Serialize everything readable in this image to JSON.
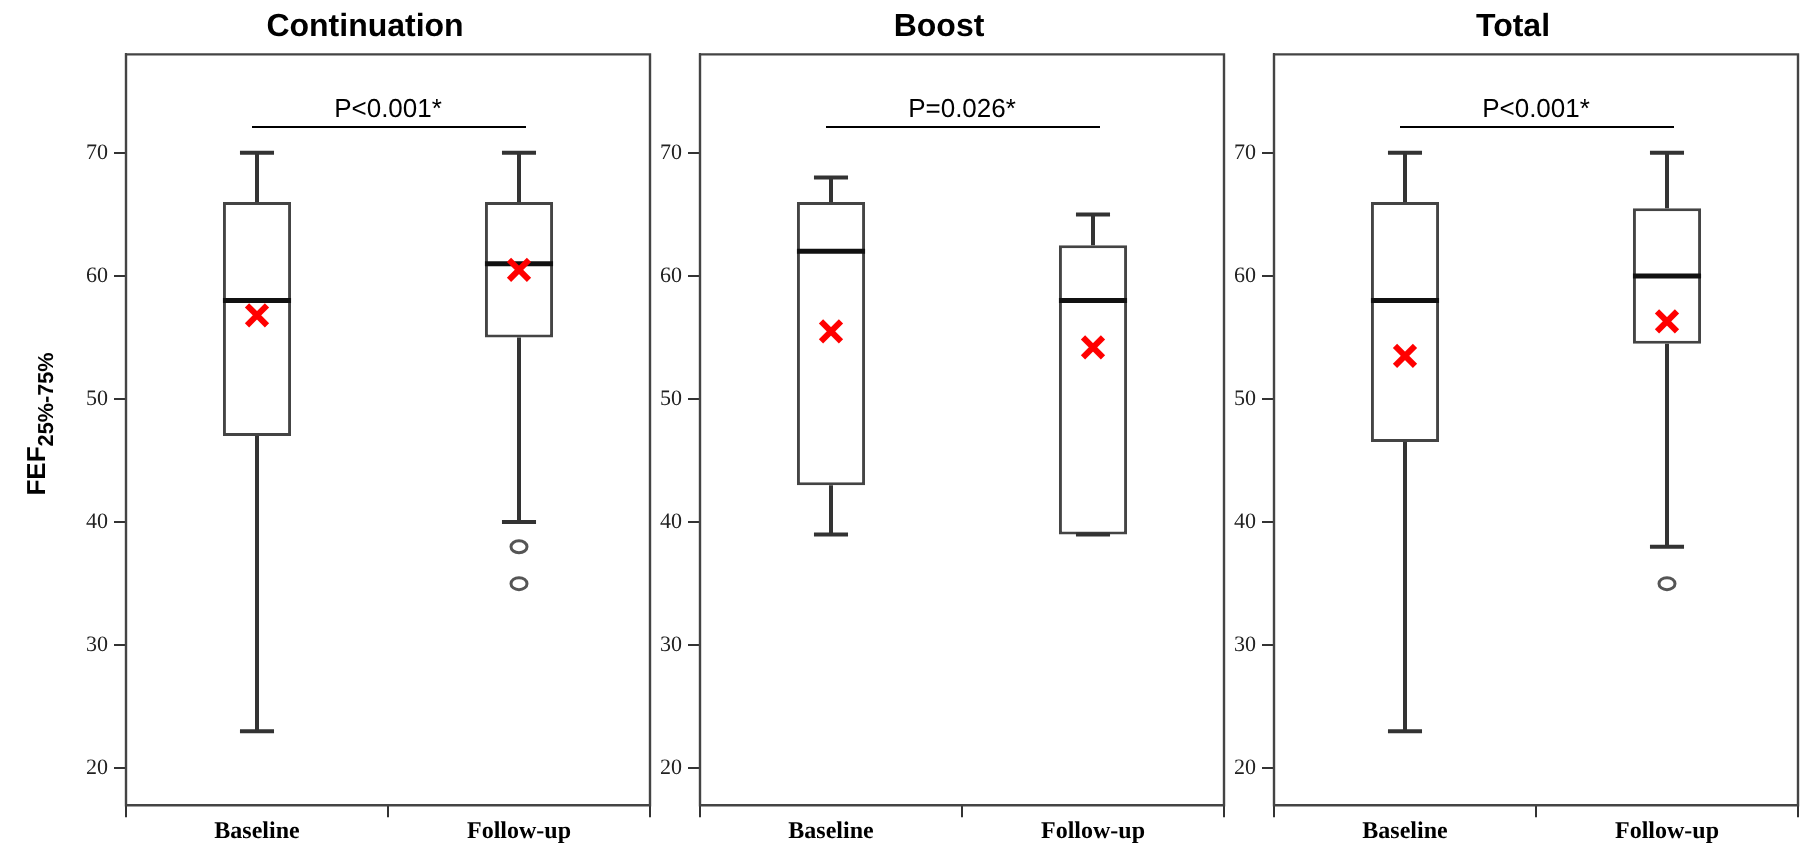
{
  "chart_data": [
    {
      "type": "box",
      "title": "Continuation",
      "ylabel": "FEF$_{25%-75%}$",
      "categories": [
        "Baseline",
        "Follow-up"
      ],
      "ylim": [
        17,
        78
      ],
      "yticks": [
        20,
        30,
        40,
        50,
        60,
        70
      ],
      "grid": false,
      "legend": false,
      "annotations": [
        "P<0.001*"
      ],
      "boxes": [
        {
          "low": 23,
          "q1": 47,
          "median": 58,
          "q3": 66,
          "high": 70,
          "mean": 56.8
        },
        {
          "low": 40,
          "q1": 55,
          "median": 61,
          "q3": 66,
          "high": 70,
          "mean": 60.5,
          "outliers": [
            38,
            35
          ]
        }
      ]
    },
    {
      "type": "box",
      "title": "Boost",
      "categories": [
        "Baseline",
        "Follow-up"
      ],
      "ylim": [
        17,
        78
      ],
      "yticks": [
        20,
        30,
        40,
        50,
        60,
        70
      ],
      "grid": false,
      "legend": false,
      "annotations": [
        "P=0.026*"
      ],
      "boxes": [
        {
          "low": 39,
          "q1": 43,
          "median": 62,
          "q3": 66,
          "high": 68,
          "mean": 55.5
        },
        {
          "low": 39,
          "q1": 39,
          "median": 58,
          "q3": 62.5,
          "high": 65,
          "mean": 54.2
        }
      ]
    },
    {
      "type": "box",
      "title": "Total",
      "categories": [
        "Baseline",
        "Follow-up"
      ],
      "ylim": [
        17,
        78
      ],
      "yticks": [
        20,
        30,
        40,
        50,
        60,
        70
      ],
      "grid": false,
      "legend": false,
      "annotations": [
        "P<0.001*"
      ],
      "boxes": [
        {
          "low": 23,
          "q1": 46.5,
          "median": 58,
          "q3": 66,
          "high": 70,
          "mean": 53.5
        },
        {
          "low": 38,
          "q1": 54.5,
          "median": 60,
          "q3": 65.5,
          "high": 70,
          "mean": 56.3,
          "outliers": [
            35
          ]
        }
      ]
    }
  ]
}
